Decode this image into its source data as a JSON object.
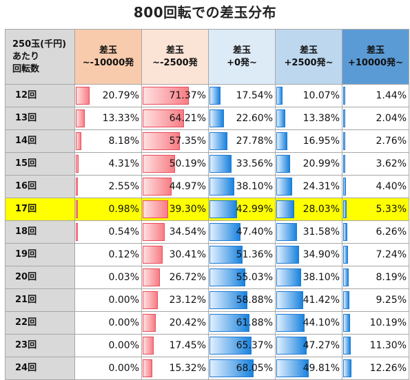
{
  "title": "800回転での差玉分布",
  "chart_data": {
    "type": "table",
    "title": "800回転での差玉分布",
    "corner_lines": [
      "250玉(千円)",
      "あたり",
      "回転数"
    ],
    "columns": [
      {
        "line1": "差玉",
        "line2": "~-10000発"
      },
      {
        "line1": "差玉",
        "line2": "~-2500発"
      },
      {
        "line1": "差玉",
        "line2": "+0発~"
      },
      {
        "line1": "差玉",
        "line2": "+2500発~"
      },
      {
        "line1": "差玉",
        "line2": "+10000発~"
      }
    ],
    "header_colors": [
      "#f8cbad",
      "#fbe4d6",
      "#ddebf7",
      "#bdd7ee",
      "#5b9bd5"
    ],
    "bar_colors": [
      "red",
      "red",
      "blue",
      "blue",
      "blue"
    ],
    "highlight_row": "17回",
    "highlight_color": "#ffff00",
    "rows": [
      {
        "label": "12回",
        "values": [
          "20.79%",
          "71.37%",
          "17.54%",
          "10.07%",
          "1.44%"
        ]
      },
      {
        "label": "13回",
        "values": [
          "13.33%",
          "64.21%",
          "22.60%",
          "13.38%",
          "2.04%"
        ]
      },
      {
        "label": "14回",
        "values": [
          "8.18%",
          "57.35%",
          "27.78%",
          "16.95%",
          "2.76%"
        ]
      },
      {
        "label": "15回",
        "values": [
          "4.31%",
          "50.19%",
          "33.56%",
          "20.99%",
          "3.62%"
        ]
      },
      {
        "label": "16回",
        "values": [
          "2.55%",
          "44.97%",
          "38.10%",
          "24.31%",
          "4.40%"
        ]
      },
      {
        "label": "17回",
        "values": [
          "0.98%",
          "39.30%",
          "42.99%",
          "28.03%",
          "5.33%"
        ]
      },
      {
        "label": "18回",
        "values": [
          "0.54%",
          "34.54%",
          "47.40%",
          "31.58%",
          "6.26%"
        ]
      },
      {
        "label": "19回",
        "values": [
          "0.12%",
          "30.41%",
          "51.36%",
          "34.90%",
          "7.24%"
        ]
      },
      {
        "label": "20回",
        "values": [
          "0.03%",
          "26.72%",
          "55.03%",
          "38.10%",
          "8.19%"
        ]
      },
      {
        "label": "21回",
        "values": [
          "0.00%",
          "23.12%",
          "58.88%",
          "41.42%",
          "9.25%"
        ]
      },
      {
        "label": "22回",
        "values": [
          "0.00%",
          "20.42%",
          "61.88%",
          "44.10%",
          "10.19%"
        ]
      },
      {
        "label": "23回",
        "values": [
          "0.00%",
          "17.45%",
          "65.37%",
          "47.27%",
          "11.30%"
        ]
      },
      {
        "label": "24回",
        "values": [
          "0.00%",
          "15.32%",
          "68.05%",
          "49.81%",
          "12.26%"
        ]
      }
    ]
  }
}
